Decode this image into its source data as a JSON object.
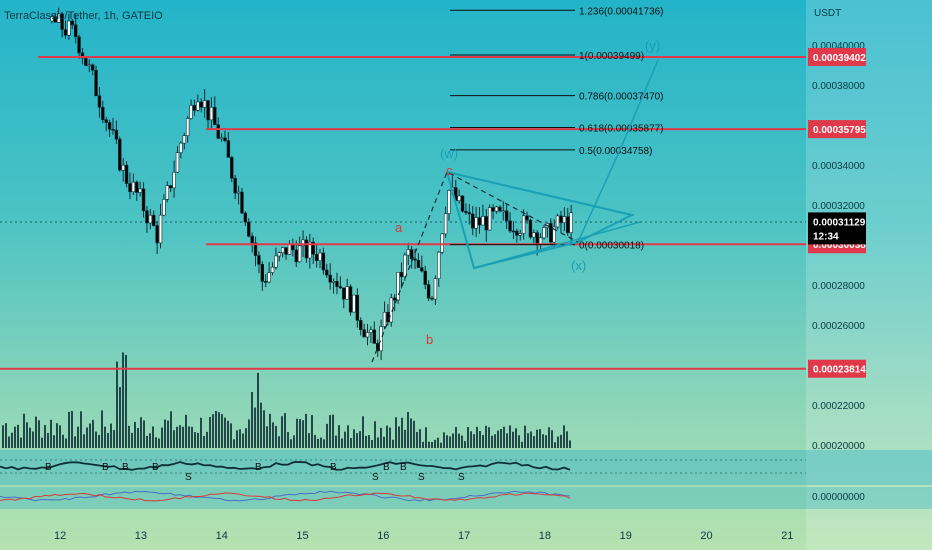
{
  "header": {
    "title": "TerraClassic/Tether, 1h, GATEIO"
  },
  "axis": {
    "unit": "USDT"
  },
  "colors": {
    "up": "#0e2f36",
    "down": "#000000",
    "level": "#e03a4a",
    "pattern": "#1a9fb5",
    "wave_red": "#d63a3a",
    "badge_current": "#000000"
  },
  "chart_data": {
    "type": "candlestick",
    "x_ticks": [
      "12",
      "13",
      "14",
      "15",
      "16",
      "17",
      "18",
      "19",
      "20",
      "21"
    ],
    "y_ticks": [
      "0.00040000",
      "0.00038000",
      "0.00034000",
      "0.00032000",
      "0.00028000",
      "0.00026000",
      "0.00022000",
      "0.00020000"
    ],
    "y_range": [
      0.000188,
      0.000415
    ],
    "price_levels": [
      {
        "value": 0.00039402,
        "label": "0.00039402"
      },
      {
        "value": 0.00035795,
        "label": "0.00035795"
      },
      {
        "value": 0.00030038,
        "label": "0.00030038"
      },
      {
        "value": 0.00023814,
        "label": "0.00023814"
      }
    ],
    "current_price": {
      "value": 0.00031129,
      "label": "0.00031129",
      "countdown": "12:34"
    },
    "fib_levels": [
      {
        "ratio": "1.236",
        "price": 0.00041736,
        "label": "1.236(0.00041736)"
      },
      {
        "ratio": "1",
        "price": 0.00039499,
        "label": "1(0.00039499)"
      },
      {
        "ratio": "0.786",
        "price": 0.0003747,
        "label": "0.786(0.00037470)"
      },
      {
        "ratio": "0.618",
        "price": 0.00035877,
        "label": "0.618(0.00035877)"
      },
      {
        "ratio": "0.5",
        "price": 0.00034758,
        "label": "0.5(0.00034758)"
      },
      {
        "ratio": "0",
        "price": 0.00030018,
        "label": "0(0.00030018)"
      }
    ],
    "wave_labels": {
      "a": "a",
      "b": "b",
      "c": "c",
      "w": "(w)",
      "x": "(x)",
      "y": "(y)"
    },
    "indicator_markers": [
      "B",
      "B",
      "B",
      "B",
      "B",
      "S",
      "B",
      "B",
      "B",
      "S",
      "S",
      "S"
    ],
    "oscillator_tick": "0.00000000",
    "volume_trend": "spikes near days 12-13 and 14, tapering toward 18",
    "price_path": [
      {
        "day": 11.9,
        "price": 0.000412
      },
      {
        "day": 12.2,
        "price": 0.000405
      },
      {
        "day": 12.5,
        "price": 0.000372
      },
      {
        "day": 12.8,
        "price": 0.000335
      },
      {
        "day": 13.0,
        "price": 0.000322
      },
      {
        "day": 13.2,
        "price": 0.000305
      },
      {
        "day": 13.5,
        "price": 0.000352
      },
      {
        "day": 13.7,
        "price": 0.000378
      },
      {
        "day": 14.0,
        "price": 0.000352
      },
      {
        "day": 14.3,
        "price": 0.000315
      },
      {
        "day": 14.5,
        "price": 0.000282
      },
      {
        "day": 14.8,
        "price": 0.000298
      },
      {
        "day": 15.2,
        "price": 0.000296
      },
      {
        "day": 15.6,
        "price": 0.000272
      },
      {
        "day": 15.9,
        "price": 0.000248
      },
      {
        "day": 16.1,
        "price": 0.00027
      },
      {
        "day": 16.3,
        "price": 0.000296
      },
      {
        "day": 16.6,
        "price": 0.000275
      },
      {
        "day": 16.8,
        "price": 0.000328
      },
      {
        "day": 17.1,
        "price": 0.00031
      },
      {
        "day": 17.4,
        "price": 0.000314
      },
      {
        "day": 17.8,
        "price": 0.000309
      },
      {
        "day": 18.0,
        "price": 0.000304
      },
      {
        "day": 18.2,
        "price": 0.000311
      }
    ]
  }
}
